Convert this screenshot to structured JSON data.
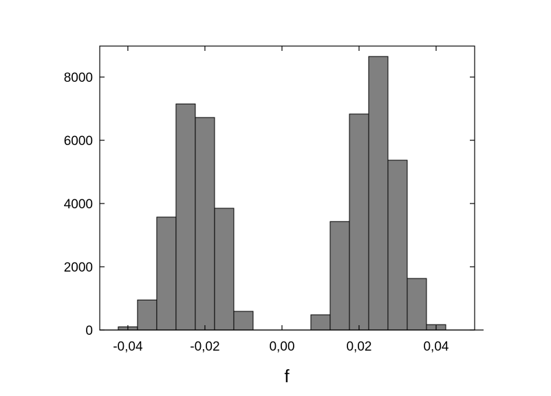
{
  "chart_data": {
    "type": "histogram",
    "x_label": "f",
    "bins": [
      -0.0425,
      -0.0375,
      -0.0325,
      -0.0275,
      -0.0225,
      -0.0175,
      -0.0125,
      -0.0075,
      -0.0025,
      0.0025,
      0.0075,
      0.0125,
      0.0175,
      0.0225,
      0.0275,
      0.0325,
      0.0375,
      0.0425
    ],
    "values": [
      100,
      950,
      3570,
      7150,
      6720,
      3850,
      590,
      0,
      0,
      0,
      480,
      3430,
      6830,
      8650,
      5370,
      1630,
      170
    ],
    "color": "#808080",
    "xlim": [
      -0.0473,
      0.05
    ],
    "ylim": [
      0,
      8980
    ],
    "xticks": [
      {
        "value": -0.04,
        "label": "-0,04"
      },
      {
        "value": -0.02,
        "label": "-0,02"
      },
      {
        "value": 0,
        "label": "0,00"
      },
      {
        "value": 0.02,
        "label": "0,02"
      },
      {
        "value": 0.04,
        "label": "0,04"
      }
    ],
    "yticks": [
      0,
      2000,
      4000,
      6000,
      8000
    ]
  }
}
